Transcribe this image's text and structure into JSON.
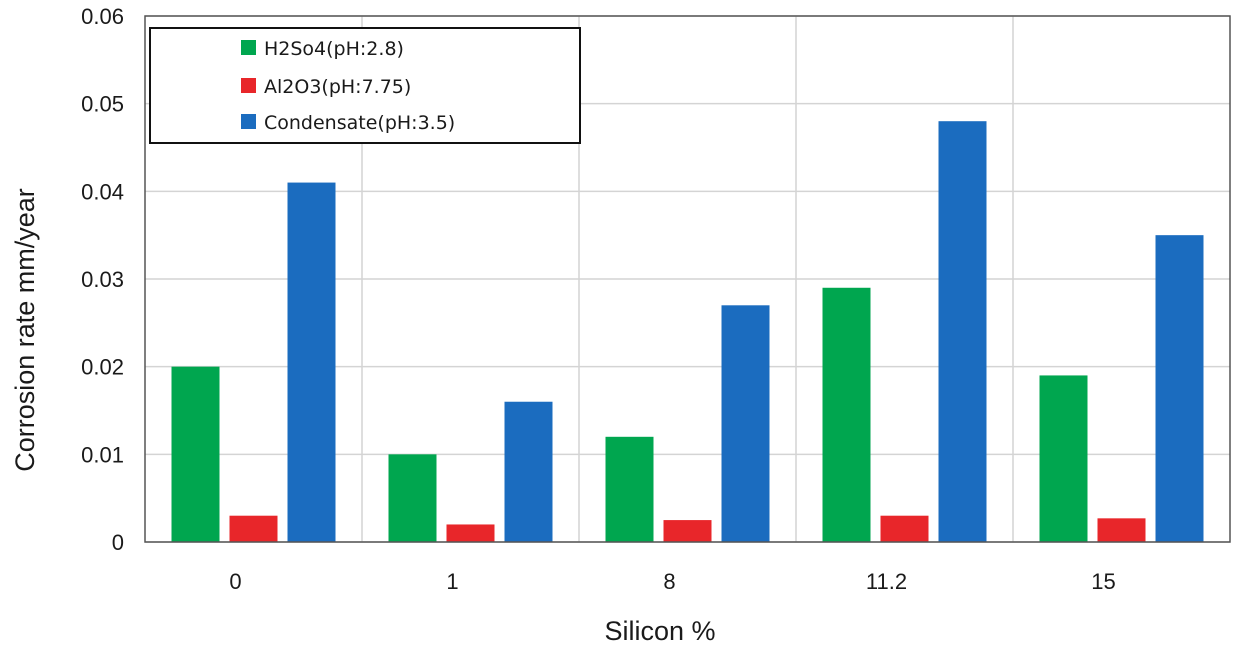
{
  "chart_data": {
    "type": "bar",
    "categories": [
      "0",
      "1",
      "8",
      "11.2",
      "15"
    ],
    "series": [
      {
        "name": "H2So4(pH:2.8)",
        "color": "#00a64f",
        "values": [
          0.02,
          0.01,
          0.012,
          0.029,
          0.019
        ]
      },
      {
        "name": "Al2O3(pH:7.75)",
        "color": "#e8262a",
        "values": [
          0.003,
          0.002,
          0.0025,
          0.003,
          0.0027
        ]
      },
      {
        "name": "Condensate(pH:3.5)",
        "color": "#1b6cbf",
        "values": [
          0.041,
          0.016,
          0.027,
          0.048,
          0.035
        ]
      }
    ],
    "xlabel": "Silicon %",
    "ylabel": "Corrosion rate mm/year",
    "ylim": [
      0,
      0.06
    ],
    "yticks": [
      "0",
      "0.01",
      "0.02",
      "0.03",
      "0.04",
      "0.05",
      "0.06"
    ],
    "grid": true,
    "legend_position": "top-left"
  }
}
